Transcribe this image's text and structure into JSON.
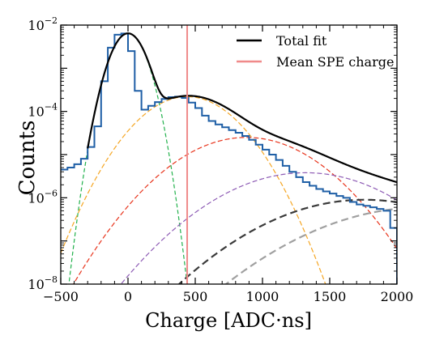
{
  "chart_data": {
    "type": "line",
    "xlabel": "Charge [ADC·ns]",
    "ylabel": "Counts",
    "xlim": [
      -500,
      2000
    ],
    "ylim": [
      1e-08,
      0.01
    ],
    "yscale": "log",
    "xticks": [
      -500,
      0,
      500,
      1000,
      1500,
      2000
    ],
    "xtick_labels": [
      "−500",
      "0",
      "500",
      "1000",
      "1500",
      "2000"
    ],
    "yticks": [
      1e-08,
      1e-06,
      0.0001,
      0.01
    ],
    "ytick_labels": [
      {
        "base": "10",
        "exp": "−8"
      },
      {
        "base": "10",
        "exp": "−6"
      },
      {
        "base": "10",
        "exp": "−4"
      },
      {
        "base": "10",
        "exp": "−2"
      }
    ],
    "grid": false,
    "legend_position": "top-right",
    "legend": [
      {
        "label": "Total fit",
        "color": "#000000"
      },
      {
        "label": "Mean SPE charge",
        "color": "#f08a8a"
      }
    ],
    "mean_spe_charge": 440,
    "histogram": {
      "color": "#1f5fa6",
      "bin_width": 50,
      "x_start": -500,
      "values": [
        4.5e-06,
        5e-06,
        6e-06,
        8e-06,
        1.5e-05,
        4.5e-05,
        0.0005,
        0.003,
        0.006,
        0.0064,
        0.0025,
        0.0003,
        0.00011,
        0.000135,
        0.000165,
        0.000195,
        0.000215,
        0.00022,
        0.000205,
        0.00016,
        0.00012,
        8e-05,
        6e-05,
        5e-05,
        4.3e-05,
        3.7e-05,
        3.2e-05,
        2.7e-05,
        2.2e-05,
        1.7e-05,
        1.3e-05,
        1e-05,
        7.5e-06,
        5.5e-06,
        4e-06,
        3e-06,
        2.3e-06,
        1.9e-06,
        1.6e-06,
        1.4e-06,
        1.25e-06,
        1.1e-06,
        1e-06,
        8e-07,
        7e-07,
        6.5e-07,
        6e-07,
        5.5e-07,
        5e-07,
        2e-07
      ]
    },
    "components": [
      {
        "color": "#22b14c",
        "dash": "5,3",
        "width": 1.2,
        "mean": 0,
        "sigma": 85,
        "amp": 0.0064
      },
      {
        "color": "#f5a623",
        "dash": "6,3",
        "width": 1.2,
        "mean": 440,
        "sigma": 230,
        "amp": 0.00022
      },
      {
        "color": "#e8341c",
        "dash": "6,3",
        "width": 1.2,
        "mean": 880,
        "sigma": 325,
        "amp": 2.5e-05
      },
      {
        "color": "#8e5cb5",
        "dash": "6,3",
        "width": 1.2,
        "mean": 1320,
        "sigma": 398,
        "amp": 3.8e-06
      },
      {
        "color": "#3a3a3a",
        "dash": "9,5",
        "width": 2.2,
        "mean": 1760,
        "sigma": 460,
        "amp": 9e-07
      },
      {
        "color": "#a0a0a0",
        "dash": "9,5",
        "width": 2.2,
        "mean": 2200,
        "sigma": 514,
        "amp": 6e-07
      }
    ]
  }
}
